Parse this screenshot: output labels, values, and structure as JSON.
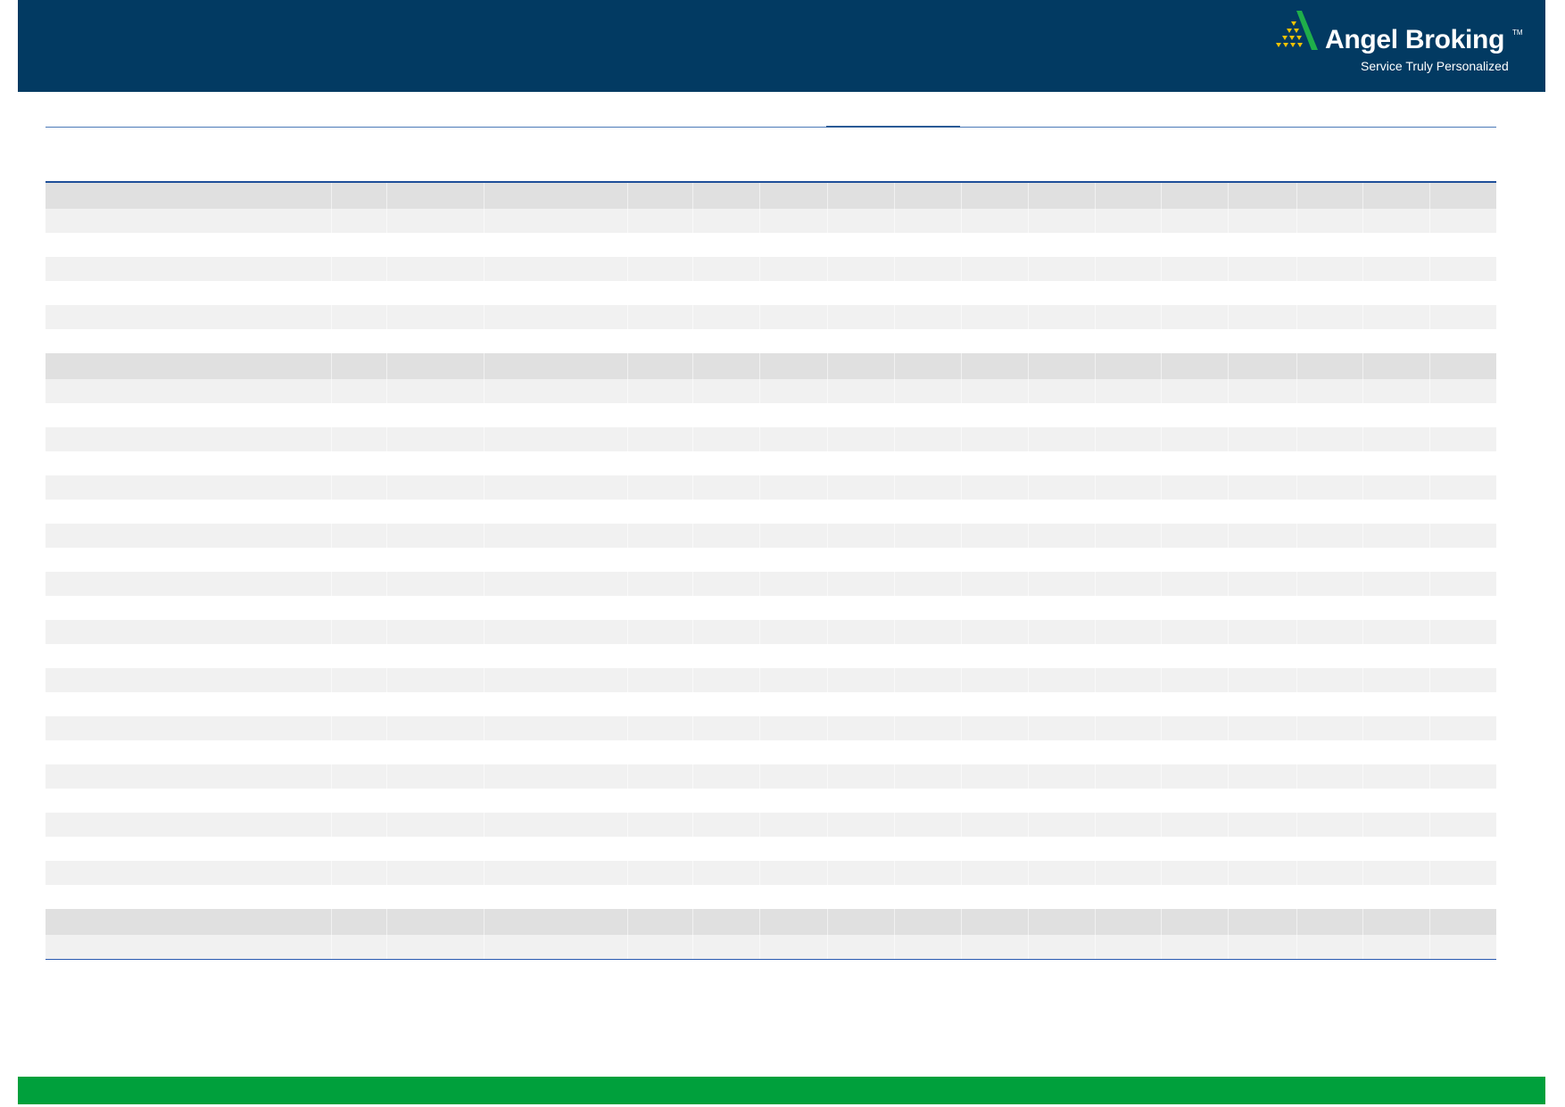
{
  "header": {
    "logo": {
      "brand": "Angel Broking",
      "trademark": "TM",
      "tagline": "Service Truly Personalized"
    }
  },
  "colors": {
    "header_bg": "#023a62",
    "footer_bg": "#00a03c",
    "rule": "#2a5ab0",
    "row_header": "#e0e0e0",
    "row_shaded": "#f1f1f1"
  },
  "table": {
    "column_count": 17,
    "sections": [
      {
        "rows": 6
      },
      {
        "rows": 22
      },
      {
        "rows": 1
      }
    ]
  }
}
